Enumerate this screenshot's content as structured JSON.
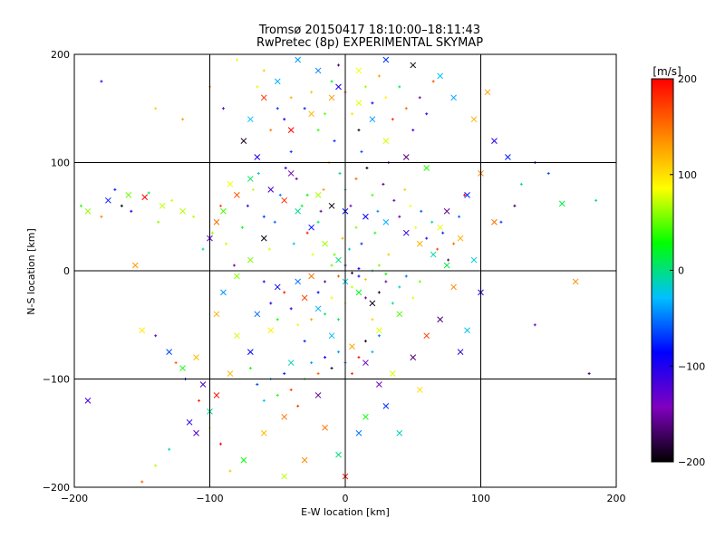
{
  "chart_data": {
    "type": "scatter",
    "title": "Tromsø 20150417 18:10:00–18:11:43",
    "subtitle": "RwPretec (8p) EXPERIMENTAL SKYMAP",
    "xlabel": "E-W location [km]",
    "ylabel": "N-S location [km]",
    "xlim": [
      -200,
      200
    ],
    "ylim": [
      -200,
      200
    ],
    "xticks": [
      -200,
      -100,
      0,
      100,
      200
    ],
    "yticks": [
      -200,
      -100,
      0,
      100,
      200
    ],
    "grid": true,
    "colorbar": {
      "label": "[m/s]",
      "range": [
        -200,
        200
      ],
      "ticks": [
        200,
        100,
        0,
        -100,
        -200
      ],
      "colors": [
        "#000000",
        "#8000c0",
        "#0000ff",
        "#00c0ff",
        "#00ff00",
        "#ffff00",
        "#ff8000",
        "#ff0000"
      ]
    },
    "markers": [
      "plus",
      "cross"
    ],
    "points_note_only_for_script": null,
    "series": [
      {
        "marker": "cross",
        "points": [
          [
            -190,
            55
          ],
          [
            -175,
            65
          ],
          [
            -160,
            70
          ],
          [
            -148,
            68
          ],
          [
            -135,
            60
          ],
          [
            -120,
            55
          ],
          [
            -100,
            30
          ],
          [
            -95,
            45
          ],
          [
            -85,
            80
          ],
          [
            -155,
            5
          ],
          [
            -150,
            -55
          ],
          [
            -130,
            -75
          ],
          [
            -110,
            -80
          ],
          [
            -105,
            -105
          ],
          [
            -120,
            -90
          ],
          [
            -115,
            -140
          ],
          [
            -190,
            -120
          ],
          [
            -60,
            -150
          ],
          [
            -45,
            -135
          ],
          [
            -30,
            -175
          ],
          [
            -20,
            -115
          ],
          [
            -40,
            -85
          ],
          [
            -55,
            -55
          ],
          [
            -65,
            -40
          ],
          [
            -50,
            -15
          ],
          [
            -35,
            -10
          ],
          [
            -30,
            -25
          ],
          [
            -25,
            -5
          ],
          [
            -20,
            -35
          ],
          [
            -10,
            -60
          ],
          [
            5,
            -70
          ],
          [
            15,
            -85
          ],
          [
            25,
            -105
          ],
          [
            30,
            -125
          ],
          [
            10,
            -150
          ],
          [
            -5,
            -170
          ],
          [
            0,
            -190
          ],
          [
            40,
            -150
          ],
          [
            55,
            -110
          ],
          [
            85,
            -75
          ],
          [
            90,
            -55
          ],
          [
            110,
            45
          ],
          [
            105,
            165
          ],
          [
            120,
            105
          ],
          [
            160,
            62
          ],
          [
            170,
            -10
          ],
          [
            70,
            40
          ],
          [
            75,
            55
          ],
          [
            60,
            95
          ],
          [
            45,
            105
          ],
          [
            30,
            120
          ],
          [
            20,
            140
          ],
          [
            10,
            155
          ],
          [
            -5,
            170
          ],
          [
            -20,
            185
          ],
          [
            -35,
            195
          ],
          [
            -50,
            175
          ],
          [
            -60,
            160
          ],
          [
            -70,
            140
          ],
          [
            -75,
            120
          ],
          [
            -65,
            105
          ],
          [
            -40,
            90
          ],
          [
            -20,
            70
          ],
          [
            -10,
            60
          ],
          [
            0,
            55
          ],
          [
            15,
            50
          ],
          [
            30,
            45
          ],
          [
            45,
            35
          ],
          [
            55,
            25
          ],
          [
            65,
            15
          ],
          [
            75,
            5
          ],
          [
            80,
            -15
          ],
          [
            40,
            -40
          ],
          [
            25,
            -55
          ],
          [
            20,
            -30
          ],
          [
            10,
            -20
          ],
          [
            0,
            -10
          ],
          [
            -5,
            10
          ],
          [
            -15,
            25
          ],
          [
            -25,
            40
          ],
          [
            -35,
            55
          ],
          [
            -45,
            65
          ],
          [
            -55,
            75
          ],
          [
            -70,
            85
          ],
          [
            -80,
            70
          ],
          [
            -90,
            55
          ],
          [
            -60,
            30
          ],
          [
            -70,
            10
          ],
          [
            -80,
            -5
          ],
          [
            -90,
            -20
          ],
          [
            -95,
            -40
          ],
          [
            -80,
            -60
          ],
          [
            -70,
            -75
          ],
          [
            -85,
            -95
          ],
          [
            -95,
            -115
          ],
          [
            -100,
            -130
          ],
          [
            -110,
            -150
          ],
          [
            -75,
            -175
          ],
          [
            -45,
            -190
          ],
          [
            -15,
            -145
          ],
          [
            15,
            -135
          ],
          [
            35,
            -95
          ],
          [
            50,
            -80
          ],
          [
            60,
            -60
          ],
          [
            70,
            -45
          ],
          [
            100,
            -20
          ],
          [
            95,
            10
          ],
          [
            85,
            30
          ],
          [
            90,
            70
          ],
          [
            100,
            90
          ],
          [
            110,
            120
          ],
          [
            95,
            140
          ],
          [
            80,
            160
          ],
          [
            70,
            180
          ],
          [
            50,
            190
          ],
          [
            30,
            195
          ],
          [
            10,
            185
          ],
          [
            -10,
            160
          ],
          [
            -25,
            145
          ],
          [
            -40,
            130
          ]
        ]
      },
      {
        "marker": "plus",
        "points": [
          [
            -195,
            60
          ],
          [
            -180,
            50
          ],
          [
            -170,
            75
          ],
          [
            -165,
            60
          ],
          [
            -158,
            55
          ],
          [
            -145,
            72
          ],
          [
            -138,
            45
          ],
          [
            -128,
            65
          ],
          [
            -112,
            50
          ],
          [
            -105,
            20
          ],
          [
            -98,
            35
          ],
          [
            -92,
            60
          ],
          [
            -88,
            25
          ],
          [
            -82,
            5
          ],
          [
            -76,
            40
          ],
          [
            -72,
            60
          ],
          [
            -68,
            75
          ],
          [
            -64,
            90
          ],
          [
            -60,
            50
          ],
          [
            -56,
            20
          ],
          [
            -52,
            45
          ],
          [
            -48,
            70
          ],
          [
            -44,
            95
          ],
          [
            -40,
            110
          ],
          [
            -36,
            85
          ],
          [
            -32,
            60
          ],
          [
            -28,
            35
          ],
          [
            -24,
            15
          ],
          [
            -20,
            45
          ],
          [
            -16,
            75
          ],
          [
            -12,
            100
          ],
          [
            -8,
            120
          ],
          [
            -4,
            90
          ],
          [
            0,
            75
          ],
          [
            4,
            60
          ],
          [
            8,
            85
          ],
          [
            12,
            110
          ],
          [
            16,
            95
          ],
          [
            20,
            70
          ],
          [
            24,
            55
          ],
          [
            28,
            80
          ],
          [
            32,
            100
          ],
          [
            36,
            65
          ],
          [
            40,
            50
          ],
          [
            44,
            75
          ],
          [
            48,
            60
          ],
          [
            52,
            40
          ],
          [
            56,
            55
          ],
          [
            60,
            30
          ],
          [
            64,
            45
          ],
          [
            68,
            20
          ],
          [
            72,
            35
          ],
          [
            76,
            10
          ],
          [
            80,
            25
          ],
          [
            84,
            50
          ],
          [
            88,
            70
          ],
          [
            -60,
            -10
          ],
          [
            -55,
            -30
          ],
          [
            -50,
            -45
          ],
          [
            -45,
            -20
          ],
          [
            -40,
            -35
          ],
          [
            -35,
            -50
          ],
          [
            -30,
            -65
          ],
          [
            -25,
            -45
          ],
          [
            -20,
            -20
          ],
          [
            -15,
            -40
          ],
          [
            -10,
            -25
          ],
          [
            -5,
            -45
          ],
          [
            0,
            -30
          ],
          [
            5,
            -15
          ],
          [
            10,
            -5
          ],
          [
            15,
            -25
          ],
          [
            20,
            -45
          ],
          [
            25,
            -20
          ],
          [
            30,
            -10
          ],
          [
            35,
            -30
          ],
          [
            40,
            -15
          ],
          [
            45,
            -5
          ],
          [
            50,
            -25
          ],
          [
            55,
            -10
          ],
          [
            -70,
            -90
          ],
          [
            -65,
            -105
          ],
          [
            -60,
            -120
          ],
          [
            -55,
            -100
          ],
          [
            -50,
            -115
          ],
          [
            -45,
            -95
          ],
          [
            -40,
            -110
          ],
          [
            -35,
            -125
          ],
          [
            -30,
            -100
          ],
          [
            -25,
            -85
          ],
          [
            -20,
            -95
          ],
          [
            -15,
            -80
          ],
          [
            -10,
            -90
          ],
          [
            -5,
            -75
          ],
          [
            0,
            -85
          ],
          [
            5,
            -95
          ],
          [
            10,
            -80
          ],
          [
            15,
            -65
          ],
          [
            20,
            -75
          ],
          [
            25,
            -60
          ],
          [
            -140,
            -60
          ],
          [
            -125,
            -85
          ],
          [
            -118,
            -100
          ],
          [
            -108,
            -120
          ],
          [
            -100,
            -145
          ],
          [
            -92,
            -160
          ],
          [
            -85,
            -185
          ],
          [
            -130,
            -165
          ],
          [
            -140,
            -180
          ],
          [
            -150,
            -195
          ],
          [
            -30,
            150
          ],
          [
            -25,
            165
          ],
          [
            -20,
            130
          ],
          [
            -15,
            145
          ],
          [
            -10,
            175
          ],
          [
            -5,
            190
          ],
          [
            0,
            165
          ],
          [
            5,
            145
          ],
          [
            10,
            130
          ],
          [
            15,
            170
          ],
          [
            20,
            155
          ],
          [
            25,
            180
          ],
          [
            30,
            160
          ],
          [
            35,
            140
          ],
          [
            40,
            170
          ],
          [
            45,
            150
          ],
          [
            50,
            130
          ],
          [
            55,
            160
          ],
          [
            60,
            145
          ],
          [
            65,
            175
          ],
          [
            -40,
            160
          ],
          [
            -45,
            140
          ],
          [
            -50,
            150
          ],
          [
            -55,
            130
          ],
          [
            -60,
            185
          ],
          [
            -65,
            170
          ],
          [
            -80,
            195
          ],
          [
            -90,
            150
          ],
          [
            -100,
            170
          ],
          [
            -120,
            140
          ],
          [
            -140,
            150
          ],
          [
            -180,
            175
          ],
          [
            140,
            -50
          ],
          [
            180,
            -95
          ],
          [
            140,
            100
          ],
          [
            150,
            90
          ],
          [
            185,
            65
          ],
          [
            130,
            80
          ],
          [
            125,
            60
          ],
          [
            115,
            45
          ],
          [
            -10,
            5
          ],
          [
            -5,
            -5
          ],
          [
            0,
            5
          ],
          [
            5,
            -2
          ],
          [
            10,
            2
          ],
          [
            15,
            -8
          ],
          [
            20,
            0
          ],
          [
            25,
            5
          ],
          [
            30,
            -3
          ],
          [
            -15,
            -10
          ],
          [
            -2,
            30
          ],
          [
            3,
            20
          ],
          [
            8,
            40
          ],
          [
            -8,
            15
          ],
          [
            12,
            25
          ],
          [
            -18,
            55
          ],
          [
            22,
            35
          ],
          [
            -28,
            70
          ],
          [
            32,
            15
          ],
          [
            -38,
            25
          ]
        ]
      }
    ]
  }
}
